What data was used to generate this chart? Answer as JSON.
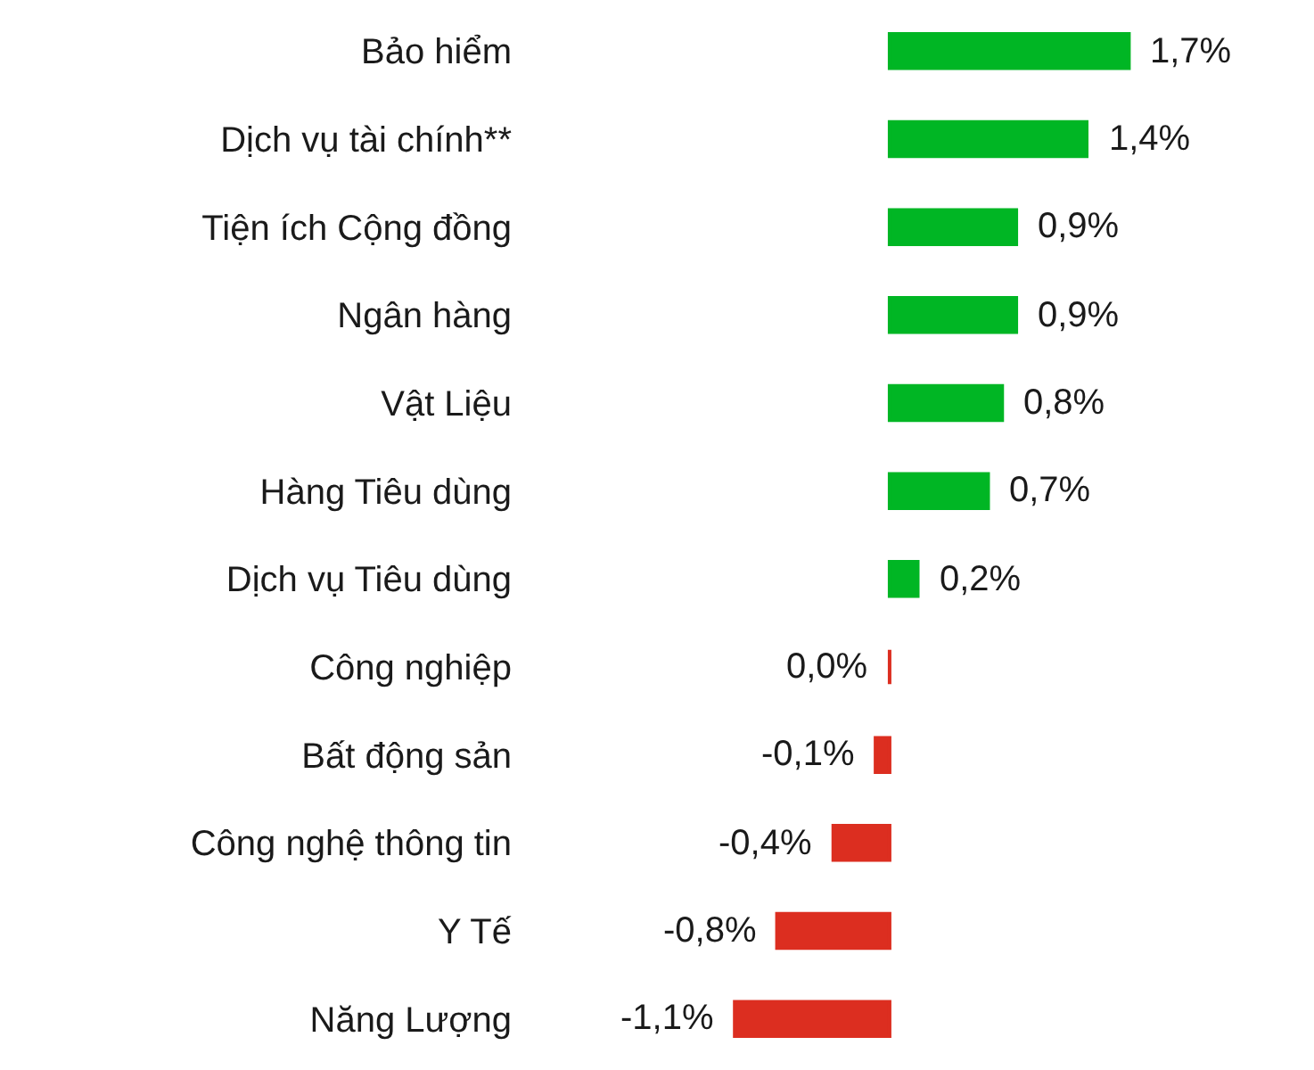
{
  "chart_data": {
    "type": "bar",
    "orientation": "horizontal",
    "tick_labels": "y",
    "categories": [
      "Bảo hiểm",
      "Dịch vụ tài chính**",
      "Tiện ích Cộng đồng",
      "Ngân hàng",
      "Vật Liệu",
      "Hàng Tiêu dùng",
      "Dịch vụ Tiêu dùng",
      "Công nghiệp",
      "Bất động sản",
      "Công nghệ thông tin",
      "Y Tế",
      "Năng Lượng"
    ],
    "values": [
      1.7,
      1.4,
      0.9,
      0.9,
      0.8,
      0.7,
      0.2,
      0.0,
      -0.1,
      -0.4,
      -0.8,
      -1.1
    ],
    "colors": [
      "#00b624",
      "#00b624",
      "#00b624",
      "#00b624",
      "#00b624",
      "#00b624",
      "#00b624",
      "#dc2e20",
      "#dc2e20",
      "#dc2e20",
      "#dc2e20",
      "#dc2e20"
    ],
    "value_labels": [
      "1,7%",
      "1,4%",
      "0,9%",
      "0,9%",
      "0,8%",
      "0,7%",
      "0,2%",
      "0,0%",
      "-0,1%",
      "-0,4%",
      "-0,8%",
      "-1,1%"
    ]
  }
}
